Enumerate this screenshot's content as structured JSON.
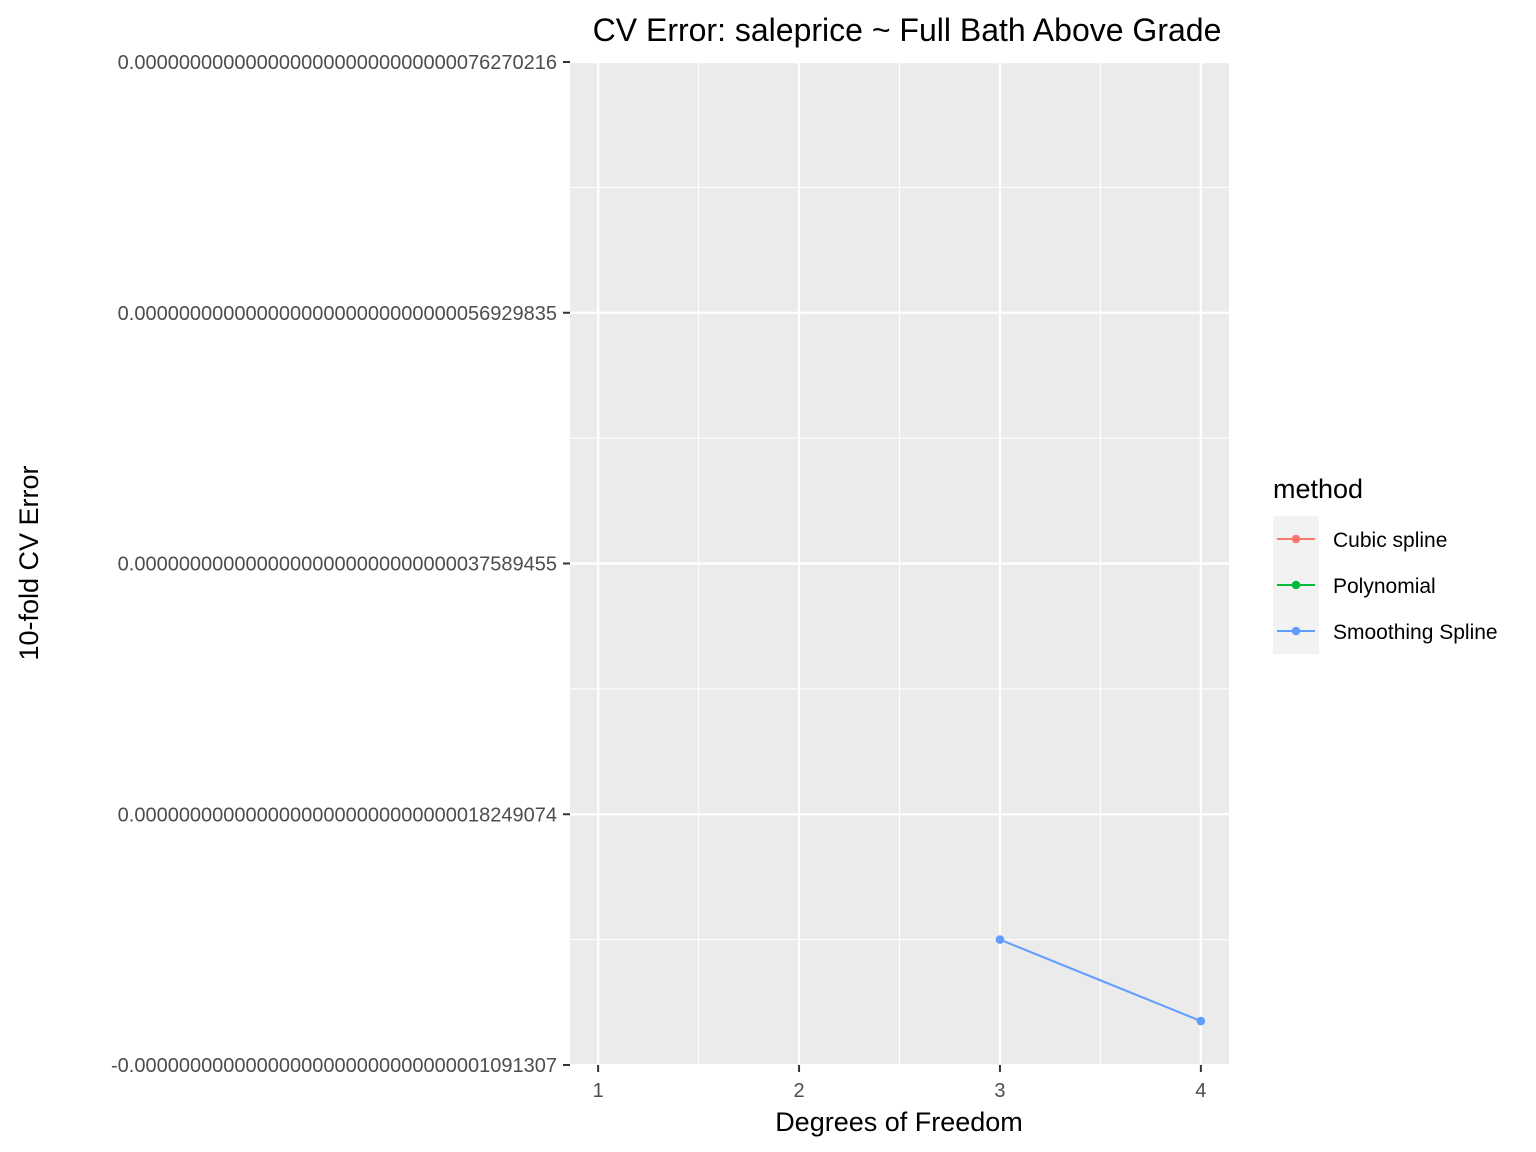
{
  "chart_data": {
    "type": "line",
    "title": "CV Error: saleprice ~ Full Bath Above Grade",
    "xlabel": "Degrees of Freedom",
    "ylabel": "10-fold CV Error",
    "x_ticks": [
      "1",
      "2",
      "3",
      "4"
    ],
    "xlim": [
      0.86,
      4.14
    ],
    "y_ticks": [
      "-0.00000000000000000000000000000001091307",
      "0.00000000000000000000000000000018249074",
      "0.00000000000000000000000000000037589455",
      "0.00000000000000000000000000000056929835",
      "0.00000000000000000000000000000076270216"
    ],
    "ylim": [
      -1.091307e-32,
      7.6270216e-31
    ],
    "grid": true,
    "legend": {
      "title": "method",
      "position": "right",
      "entries": [
        {
          "label": "Cubic spline",
          "color": "#F8766D"
        },
        {
          "label": "Polynomial",
          "color": "#00BA38"
        },
        {
          "label": "Smoothing Spline",
          "color": "#619CFF"
        }
      ]
    },
    "series": [
      {
        "name": "Smoothing Spline",
        "color": "#619CFF",
        "x": [
          3,
          4
        ],
        "y": [
          8.58e-32,
          2.3e-32
        ]
      }
    ]
  }
}
